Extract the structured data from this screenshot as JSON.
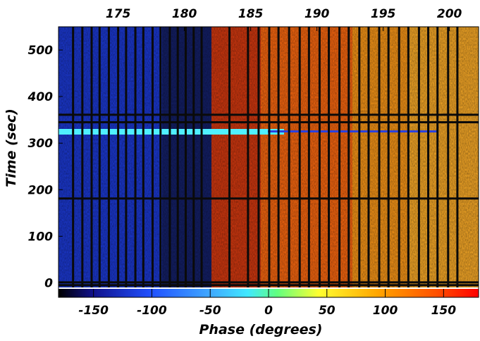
{
  "chart_data": {
    "type": "heatmap",
    "title": "",
    "xlabel": "Phase (degrees)",
    "ylabel": "Time (sec)",
    "colorbar": {
      "range": [
        -180,
        180
      ],
      "ticks": [
        -150,
        -100,
        -50,
        0,
        50,
        100,
        150
      ],
      "tick_labels": [
        "-150",
        "-100",
        "-50",
        "0",
        "50",
        "100",
        "150"
      ],
      "colormap": [
        "#000000",
        "#1010a0",
        "#2050ff",
        "#40a0ff",
        "#40e0ff",
        "#60ff80",
        "#ffff30",
        "#ffa500",
        "#ff5000",
        "#ff0000"
      ]
    },
    "y_axis": {
      "range": [
        -10,
        550
      ],
      "ticks": [
        0,
        100,
        200,
        300,
        400,
        500
      ],
      "tick_labels": [
        "0",
        "100",
        "200",
        "300",
        "400",
        "500"
      ]
    },
    "top_axis": {
      "range": [
        170.5,
        202.2
      ],
      "ticks": [
        175,
        180,
        185,
        190,
        195,
        200
      ],
      "tick_labels": [
        "175",
        "180",
        "185",
        "190",
        "195",
        "200"
      ]
    },
    "vertical_dividers_at_top_axis": [
      171.6,
      172.3,
      173.0,
      173.6,
      174.3,
      175.0,
      175.6,
      176.3,
      176.9,
      177.6,
      178.2,
      178.9,
      179.5,
      180.1,
      180.7,
      181.3,
      183.4,
      184.8,
      185.6,
      186.4,
      187.1,
      187.9,
      188.7,
      189.4,
      190.2,
      190.9,
      191.7,
      192.4,
      193.2,
      193.9,
      194.7,
      195.4,
      196.2,
      196.9,
      197.7,
      198.4,
      199.1,
      199.9,
      200.6
    ],
    "horizontal_dividers_time": [
      361,
      345,
      181,
      1,
      -5
    ],
    "bright_stripe_time": 324,
    "transition_phase_band_top_axis": [
      182.0,
      187.0
    ]
  }
}
